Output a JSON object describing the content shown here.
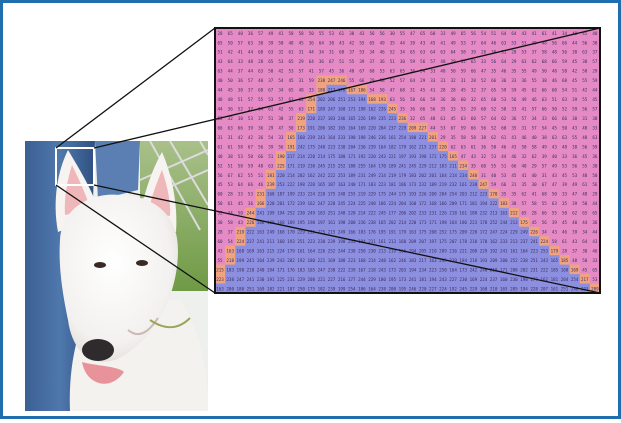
{
  "figure": {
    "frame_color": "#1f6fae",
    "photo_subject_icon": "bull-terrier-dog-photo",
    "grid": {
      "rows": 28,
      "cols": 38,
      "background_color": "#e58ac4",
      "foreground_color": "#8c8ee0",
      "edge_color": "#f0a37e",
      "text_color": "#3a2f60",
      "low_value_range": [
        28,
        68
      ],
      "high_value_range": [
        160,
        255
      ]
    },
    "zoom_lines_color": "#111111"
  }
}
